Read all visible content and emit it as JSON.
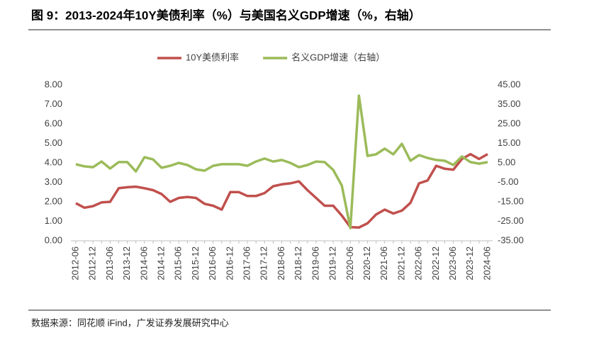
{
  "chart_data": {
    "type": "line",
    "title": "图 9：2013-2024年10Y美债利率（%）与美国名义GDP增速（%，右轴）",
    "source": "数据来源：同花顺 iFind，广发证券发展研究中心",
    "categories": [
      "2012-06",
      null,
      "2012-12",
      null,
      "2013-06",
      null,
      "2013-12",
      null,
      "2014-06",
      null,
      "2014-12",
      null,
      "2015-06",
      null,
      "2015-12",
      null,
      "2016-06",
      null,
      "2016-12",
      null,
      "2017-06",
      null,
      "2017-12",
      null,
      "2018-06",
      null,
      "2018-12",
      null,
      "2019-06",
      null,
      "2019-12",
      null,
      "2020-06",
      null,
      "2020-12",
      null,
      "2021-06",
      null,
      "2021-12",
      null,
      "2022-06",
      null,
      "2022-12",
      null,
      "2023-06",
      null,
      "2023-12",
      null,
      "2024-06"
    ],
    "series": [
      {
        "name": "10Y美债利率",
        "color": "#c0504d",
        "values": [
          1.93,
          1.7,
          1.78,
          1.97,
          2.0,
          2.7,
          2.75,
          2.78,
          2.7,
          2.6,
          2.4,
          2.0,
          2.2,
          2.25,
          2.2,
          1.9,
          1.8,
          1.6,
          2.5,
          2.5,
          2.3,
          2.3,
          2.45,
          2.8,
          2.9,
          2.95,
          3.05,
          2.6,
          2.2,
          1.8,
          1.8,
          1.3,
          0.7,
          0.68,
          0.9,
          1.35,
          1.6,
          1.4,
          1.55,
          1.95,
          2.95,
          3.1,
          3.85,
          3.7,
          3.65,
          4.2,
          4.45,
          4.2,
          4.45
        ]
      },
      {
        "name": "名义GDP增速（右轴）",
        "color": "#9bbb59",
        "axis": "y2",
        "values": [
          4.3,
          3.2,
          2.8,
          5.7,
          2.1,
          5.4,
          5.4,
          0.6,
          7.9,
          6.8,
          2.5,
          3.5,
          5.0,
          3.9,
          1.7,
          1.0,
          3.5,
          4.3,
          4.3,
          4.3,
          3.5,
          5.7,
          7.2,
          5.7,
          6.5,
          5.0,
          2.8,
          3.9,
          5.7,
          5.4,
          1.4,
          -6.6,
          -28.5,
          39.5,
          8.6,
          9.4,
          12.3,
          9.4,
          14.8,
          6.1,
          9.0,
          7.5,
          6.5,
          6.1,
          3.9,
          8.3,
          5.4,
          4.6,
          5.4
        ]
      }
    ],
    "ylim": [
      0,
      8
    ],
    "yticks": [
      {
        "value": 0,
        "label": "0.00"
      },
      {
        "value": 1,
        "label": "1.00"
      },
      {
        "value": 2,
        "label": "2.00"
      },
      {
        "value": 3,
        "label": "3.00"
      },
      {
        "value": 4,
        "label": "4.00"
      },
      {
        "value": 5,
        "label": "5.00"
      },
      {
        "value": 6,
        "label": "6.00"
      },
      {
        "value": 7,
        "label": "7.00"
      },
      {
        "value": 8,
        "label": "8.00"
      }
    ],
    "y2lim": [
      -35,
      45
    ],
    "y2ticks": [
      {
        "value": -35,
        "label": "-35.00"
      },
      {
        "value": -25,
        "label": "-25.00"
      },
      {
        "value": -15,
        "label": "-15.00"
      },
      {
        "value": -5,
        "label": "-5.00"
      },
      {
        "value": 5,
        "label": "5.00"
      },
      {
        "value": 15,
        "label": "15.00"
      },
      {
        "value": 25,
        "label": "25.00"
      },
      {
        "value": 35,
        "label": "35.00"
      },
      {
        "value": 45,
        "label": "45.00"
      }
    ],
    "grid": false,
    "legend": "top"
  }
}
